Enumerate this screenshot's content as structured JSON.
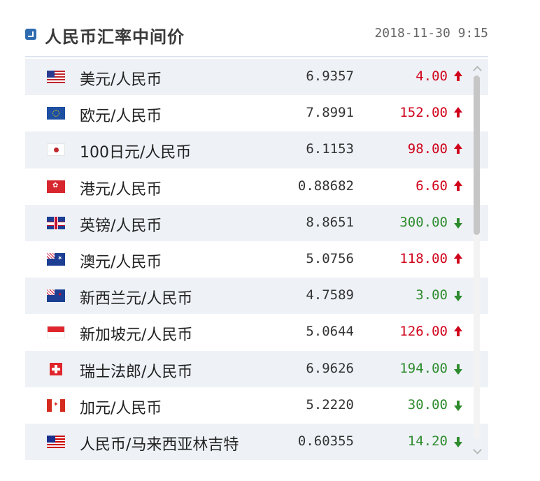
{
  "header": {
    "title": "人民币汇率中间价",
    "timestamp": "2018-11-30 9:15",
    "icon": "collapse-arrow-icon"
  },
  "colors": {
    "up": "#d0021b",
    "down": "#2e8b2e",
    "row_alt": "#eef2f7",
    "accent": "#2f6bb0"
  },
  "rows": [
    {
      "flag": "us",
      "name": "美元/人民币",
      "rate": "6.9357",
      "change": "4.00",
      "direction": "up"
    },
    {
      "flag": "eu",
      "name": "欧元/人民币",
      "rate": "7.8991",
      "change": "152.00",
      "direction": "up"
    },
    {
      "flag": "jp",
      "name": "100日元/人民币",
      "rate": "6.1153",
      "change": "98.00",
      "direction": "up"
    },
    {
      "flag": "hk",
      "name": "港元/人民币",
      "rate": "0.88682",
      "change": "6.60",
      "direction": "up"
    },
    {
      "flag": "gb",
      "name": "英镑/人民币",
      "rate": "8.8651",
      "change": "300.00",
      "direction": "down"
    },
    {
      "flag": "au",
      "name": "澳元/人民币",
      "rate": "5.0756",
      "change": "118.00",
      "direction": "up"
    },
    {
      "flag": "nz",
      "name": "新西兰元/人民币",
      "rate": "4.7589",
      "change": "3.00",
      "direction": "down"
    },
    {
      "flag": "sg",
      "name": "新加坡元/人民币",
      "rate": "5.0644",
      "change": "126.00",
      "direction": "up"
    },
    {
      "flag": "ch",
      "name": "瑞士法郎/人民币",
      "rate": "6.9626",
      "change": "194.00",
      "direction": "down"
    },
    {
      "flag": "ca",
      "name": "加元/人民币",
      "rate": "5.2220",
      "change": "30.00",
      "direction": "down"
    },
    {
      "flag": "my",
      "name": "人民币/马来西亚林吉特",
      "rate": "0.60355",
      "change": "14.20",
      "direction": "down"
    }
  ]
}
